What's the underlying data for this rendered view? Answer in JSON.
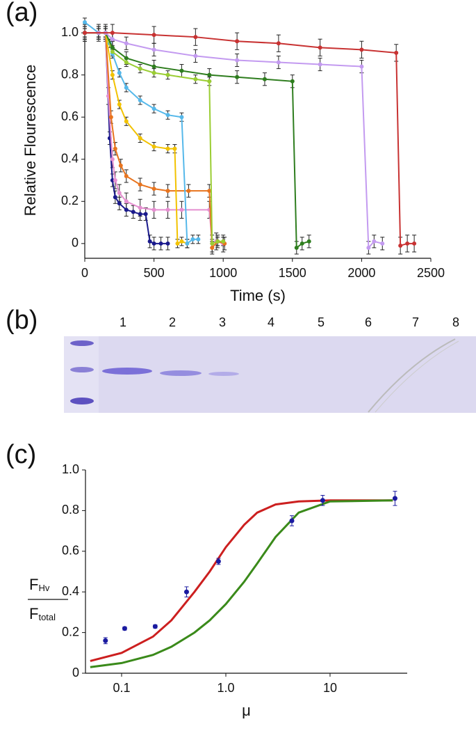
{
  "chart_data": [
    {
      "type": "line",
      "panel_label": "(a)",
      "xlabel": "Time (s)",
      "ylabel": "Relative Flourescence",
      "xlim": [
        0,
        2500
      ],
      "xticks": [
        0,
        500,
        1000,
        1500,
        2000,
        2500
      ],
      "ylim": [
        -0.07,
        1.05
      ],
      "yticks": [
        0,
        0.2,
        0.4,
        0.6,
        0.8,
        {
          "value": 1,
          "label": "1.0"
        }
      ],
      "series": [
        {
          "color": "#1a1a8c",
          "error": 0.03,
          "x": [
            0,
            100,
            150,
            180,
            200,
            220,
            250,
            300,
            350,
            400,
            440,
            470,
            500,
            550,
            600
          ],
          "values": [
            1,
            1,
            1,
            0.5,
            0.3,
            0.22,
            0.19,
            0.16,
            0.15,
            0.14,
            0.14,
            0.01,
            0,
            0,
            0
          ]
        },
        {
          "color": "#e58fd0",
          "error": 0.04,
          "x": [
            0,
            100,
            150,
            170,
            200,
            220,
            250,
            300,
            400,
            500,
            600,
            700,
            900,
            920,
            950,
            1000
          ],
          "values": [
            1,
            1,
            1,
            0.7,
            0.4,
            0.3,
            0.24,
            0.2,
            0.17,
            0.16,
            0.16,
            0.16,
            0.16,
            0,
            0.01,
            0
          ]
        },
        {
          "color": "#e8741e",
          "error": 0.03,
          "x": [
            0,
            100,
            150,
            190,
            220,
            260,
            300,
            400,
            500,
            600,
            750,
            900,
            920,
            960,
            1010
          ],
          "values": [
            1,
            1,
            1,
            0.6,
            0.45,
            0.37,
            0.32,
            0.28,
            0.26,
            0.25,
            0.25,
            0.25,
            -0.02,
            0.01,
            0
          ]
        },
        {
          "color": "#f2c200",
          "error": 0.02,
          "x": [
            0,
            100,
            150,
            200,
            250,
            300,
            400,
            500,
            600,
            650,
            670,
            700,
            740
          ],
          "values": [
            1,
            1,
            1,
            0.8,
            0.66,
            0.58,
            0.5,
            0.46,
            0.45,
            0.45,
            0,
            0.01,
            0
          ]
        },
        {
          "color": "#55b8ea",
          "error": 0.02,
          "x": [
            0,
            100,
            150,
            180,
            200,
            250,
            300,
            400,
            500,
            600,
            700,
            740,
            780,
            820
          ],
          "values": [
            1.05,
            1,
            1,
            0.95,
            0.9,
            0.81,
            0.74,
            0.68,
            0.64,
            0.61,
            0.6,
            0,
            0.02,
            0.02
          ]
        },
        {
          "color": "#9acd32",
          "error": 0.02,
          "x": [
            0,
            100,
            150,
            200,
            300,
            400,
            500,
            600,
            800,
            900,
            920,
            960,
            1000
          ],
          "values": [
            1,
            1,
            1,
            0.91,
            0.86,
            0.83,
            0.81,
            0.8,
            0.78,
            0.77,
            0,
            0.01,
            0.01
          ]
        },
        {
          "color": "#2e7d1e",
          "error": 0.03,
          "x": [
            0,
            100,
            150,
            200,
            300,
            500,
            700,
            900,
            1100,
            1300,
            1500,
            1530,
            1570,
            1620
          ],
          "values": [
            1,
            1,
            1,
            0.93,
            0.88,
            0.84,
            0.82,
            0.8,
            0.79,
            0.78,
            0.77,
            -0.02,
            0,
            0.01
          ]
        },
        {
          "color": "#c39af0",
          "error": 0.03,
          "x": [
            0,
            100,
            150,
            200,
            300,
            500,
            800,
            1100,
            1400,
            1700,
            2000,
            2050,
            2090,
            2150
          ],
          "values": [
            1,
            1,
            1,
            0.97,
            0.95,
            0.92,
            0.89,
            0.87,
            0.86,
            0.85,
            0.84,
            -0.02,
            0.01,
            0
          ]
        },
        {
          "color": "#c83232",
          "error": 0.04,
          "x": [
            0,
            200,
            500,
            800,
            1100,
            1400,
            1700,
            2000,
            2250,
            2280,
            2330,
            2380
          ],
          "values": [
            1,
            1,
            0.99,
            0.98,
            0.96,
            0.95,
            0.93,
            0.92,
            0.905,
            -0.01,
            0,
            0
          ]
        }
      ]
    },
    {
      "type": "scatter",
      "panel_label": "(c)",
      "xlabel": "μ",
      "log_x": true,
      "ylabel": {
        "numerator": "F",
        "numerator_subscript": "Hv",
        "denominator": "F",
        "denominator_subscript": "total"
      },
      "xlim": [
        0.045,
        55
      ],
      "xticks": [
        0.1,
        {
          "value": 1,
          "label": "1.0"
        },
        10
      ],
      "ylim": [
        0,
        1
      ],
      "yticks": [
        0,
        0.2,
        0.4,
        0.6,
        0.8,
        {
          "value": 1,
          "label": "1.0"
        }
      ],
      "color": "#1a1aa0",
      "x": [
        0.07,
        0.107,
        0.21,
        0.42,
        0.85,
        4.3,
        8.5,
        42
      ],
      "values": [
        0.16,
        0.22,
        0.23,
        0.4,
        0.55,
        0.75,
        0.85,
        0.86
      ],
      "errors": [
        0.015,
        0.008,
        0.008,
        0.025,
        0.015,
        0.025,
        0.025,
        0.035
      ],
      "curves": [
        {
          "color": "#cc1f1f",
          "x": [
            0.05,
            0.1,
            0.2,
            0.3,
            0.5,
            0.7,
            1,
            1.5,
            2,
            3,
            5,
            10,
            40
          ],
          "values": [
            0.06,
            0.1,
            0.18,
            0.26,
            0.4,
            0.5,
            0.62,
            0.73,
            0.79,
            0.83,
            0.845,
            0.85,
            0.85
          ]
        },
        {
          "color": "#3a8a1a",
          "x": [
            0.05,
            0.1,
            0.2,
            0.3,
            0.5,
            0.7,
            1,
            1.5,
            2,
            3,
            5,
            10,
            40
          ],
          "values": [
            0.03,
            0.05,
            0.09,
            0.13,
            0.2,
            0.26,
            0.34,
            0.45,
            0.54,
            0.67,
            0.79,
            0.845,
            0.85
          ]
        }
      ]
    }
  ],
  "gel": {
    "panel_label": "(b)",
    "lanes": [
      "1",
      "2",
      "3",
      "4",
      "5",
      "6",
      "7",
      "8"
    ]
  }
}
